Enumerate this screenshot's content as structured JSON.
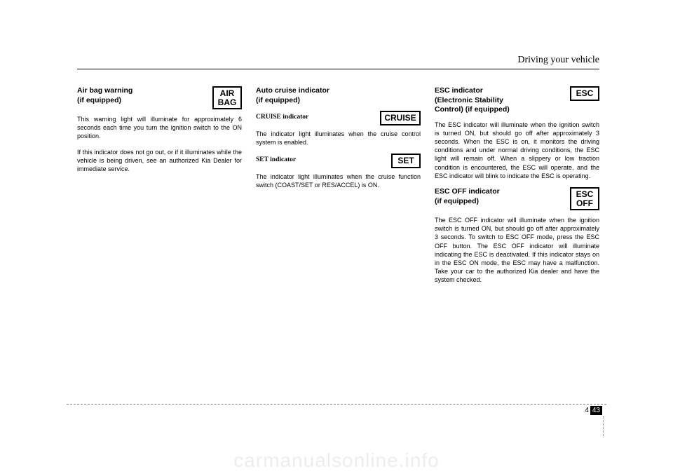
{
  "header": {
    "section_title": "Driving your vehicle"
  },
  "footer": {
    "chapter": "4",
    "page": "43"
  },
  "watermark": "carmanualsonline.info",
  "col1": {
    "airbag": {
      "title_l1": "Air bag warning",
      "title_l2": "(if equipped)",
      "icon_l1": "AIR",
      "icon_l2": "BAG",
      "p1": "This warning light will illuminate for approximately 6 seconds each time you turn the ignition switch to the ON position.",
      "p2": "If this indicator does not go out, or if it illuminates while the vehicle is being driven, see an authorized Kia Dealer for immediate service."
    }
  },
  "col2": {
    "autocruise": {
      "title_l1": "Auto cruise indicator",
      "title_l2": "(if equipped)",
      "cruise": {
        "label": "CRUISE indicator",
        "icon": "CRUISE",
        "text": "The indicator light illuminates when the cruise control system is enabled."
      },
      "set": {
        "label": "SET indicator",
        "icon": "SET",
        "text": "The indicator light illuminates when the cruise function switch (COAST/SET or RES/ACCEL) is ON."
      }
    }
  },
  "col3": {
    "esc": {
      "title_l1": "ESC indicator",
      "title_l2": "(Electronic Stability",
      "title_l3": "Control) (if equipped)",
      "icon": "ESC",
      "text": "The ESC indicator will illuminate when the ignition switch is turned ON, but should go off after approximately 3 seconds. When the ESC is on, it monitors the driving conditions and under normal driving conditions, the ESC light will remain off.  When a slippery or low traction condition is encountered, the ESC will operate, and the ESC indicator will blink to indicate the ESC is operating."
    },
    "escoff": {
      "title_l1": "ESC OFF indicator",
      "title_l2": "(if equipped)",
      "icon_l1": "ESC",
      "icon_l2": "OFF",
      "text": "The ESC OFF indicator will illuminate when the ignition switch is turned ON, but should go off after approximately 3 seconds. To switch to ESC OFF mode, press the ESC OFF button. The ESC OFF indicator will illuminate indicating the ESC is deactivated. If this indicator stays on in the ESC ON mode, the ESC may have a malfunction. Take your car to the authorized Kia dealer and have the system checked."
    }
  }
}
